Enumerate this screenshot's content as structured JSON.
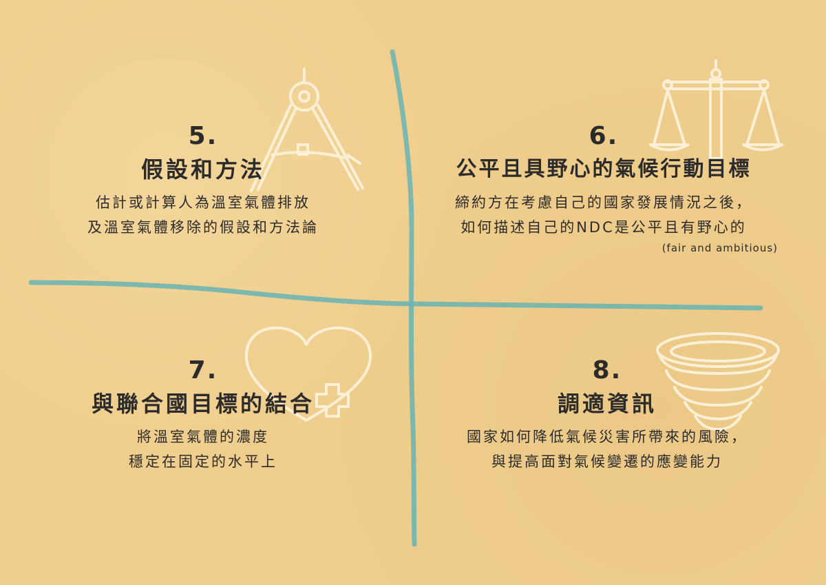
{
  "colors": {
    "background": "#efcd8c",
    "axis_line": "#6fb5b0",
    "icon_stroke": "#fbf0d6",
    "text": "#2b2b2b"
  },
  "quadrants": [
    {
      "number": "5.",
      "title": "假設和方法",
      "desc_lines": [
        "估計或計算人為溫室氣體排放",
        "及溫室氣體移除的假設和方法論"
      ],
      "icon": "compass-icon"
    },
    {
      "number": "6.",
      "title": "公平且具野心的氣候行動目標",
      "desc_lines": [
        "締約方在考慮自己的國家發展情況之後，",
        "如何描述自己的NDC是公平且有野心的"
      ],
      "note": "(fair and ambitious)",
      "icon": "scales-icon"
    },
    {
      "number": "7.",
      "title": "與聯合國目標的結合",
      "desc_lines": [
        "將溫室氣體的濃度",
        "穩定在固定的水平上"
      ],
      "icon": "heart-plus-icon"
    },
    {
      "number": "8.",
      "title": "調適資訊",
      "desc_lines": [
        "國家如何降低氣候災害所帶來的風險，",
        "與提高面對氣候變遷的應變能力"
      ],
      "icon": "bowl-stack-icon"
    }
  ]
}
